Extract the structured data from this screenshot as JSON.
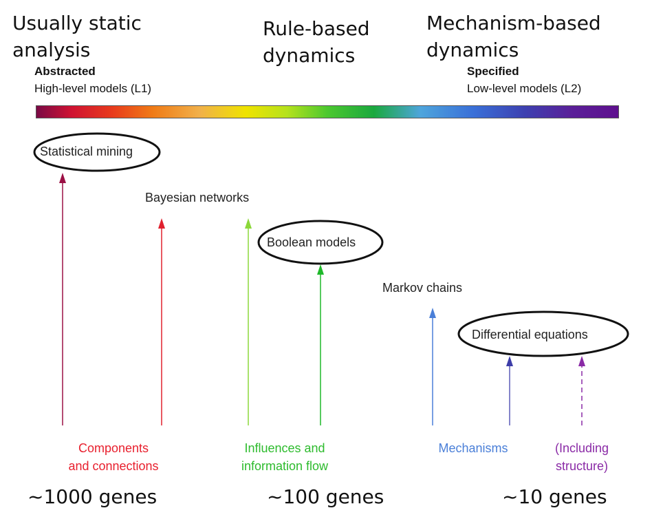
{
  "headers": {
    "left": [
      "Usually static",
      "analysis"
    ],
    "center": [
      "Rule-based",
      "dynamics"
    ],
    "right": [
      "Mechanism-based",
      "dynamics"
    ]
  },
  "spectrum": {
    "left_bold": "Abstracted",
    "left_text": "High-level models (L1)",
    "right_bold": "Specified",
    "right_text": "Low-level models (L2)"
  },
  "models": {
    "statistical_mining": "Statistical mining",
    "bayesian_networks": "Bayesian networks",
    "boolean_models": "Boolean models",
    "markov_chains": "Markov chains",
    "differential_equations": "Differential equations"
  },
  "categories": {
    "components": [
      "Components",
      "and connections"
    ],
    "influences": [
      "Influences and",
      "information flow"
    ],
    "mechanisms": "Mechanisms",
    "structure": [
      "(Including",
      "structure)"
    ]
  },
  "category_colors": {
    "components": "#e8202e",
    "influences": "#2dbb2d",
    "mechanisms": "#4a7fd8",
    "structure": "#8a2aa6"
  },
  "genes": {
    "large": "~1000 genes",
    "medium": "~100 genes",
    "small": "~10 genes"
  }
}
